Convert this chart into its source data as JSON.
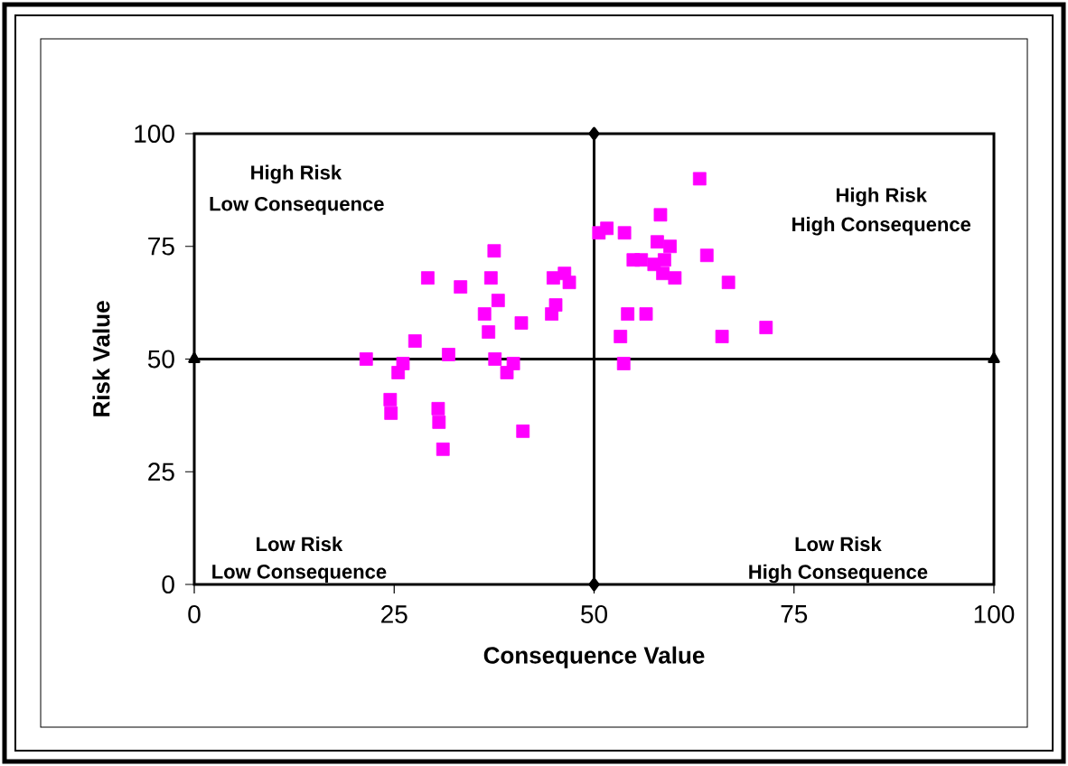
{
  "chart_data": {
    "type": "scatter",
    "xlabel": "Consequence Value",
    "ylabel": "Risk Value",
    "series": [
      {
        "color": "#ff00ff",
        "marker": "square",
        "x": [
          21.5,
          24.5,
          24.6,
          25.5,
          26.1,
          27.6,
          29.2,
          30.5,
          30.6,
          31.1,
          31.8,
          33.3,
          36.3,
          36.8,
          37.1,
          37.5,
          37.6,
          38.0,
          39.1,
          39.9,
          40.9,
          41.1,
          44.7,
          44.9,
          45.2,
          46.3,
          46.9,
          50.6,
          51.6,
          53.8,
          53.3,
          53.7,
          54.2,
          54.9,
          55.9,
          56.5,
          57.9,
          57.5,
          58.3,
          58.8,
          58.6,
          59.5,
          60.1,
          63.2,
          64.1,
          66.0,
          66.8,
          71.5
        ],
        "values": [
          50,
          41,
          38,
          47,
          49,
          54,
          68,
          39,
          36,
          30,
          51,
          66,
          60,
          56,
          68,
          74,
          50,
          63,
          47,
          49,
          58,
          34,
          60,
          68,
          62,
          69,
          67,
          78,
          79,
          78,
          55,
          49,
          60,
          72,
          72,
          60,
          76,
          71,
          82,
          72,
          69,
          75,
          68,
          90,
          73,
          55,
          67,
          57
        ]
      },
      {
        "type": "line",
        "color": "#000000",
        "marker": "diamond",
        "x": [
          50,
          50
        ],
        "values": [
          0,
          100
        ]
      },
      {
        "type": "line",
        "color": "#000000",
        "marker": "triangle",
        "x": [
          0,
          100
        ],
        "values": [
          50,
          50
        ]
      }
    ],
    "xlim": [
      0,
      100
    ],
    "ylim": [
      0,
      100
    ],
    "xticks": [
      0,
      25,
      50,
      75,
      100
    ],
    "yticks": [
      0,
      25,
      50,
      75,
      100
    ],
    "grid": false,
    "annotations": [
      "High Risk",
      "Low Consequence",
      "High Risk",
      "High Consequence",
      "Low Risk",
      "Low Consequence",
      "Low Risk",
      "High Consequence"
    ]
  }
}
